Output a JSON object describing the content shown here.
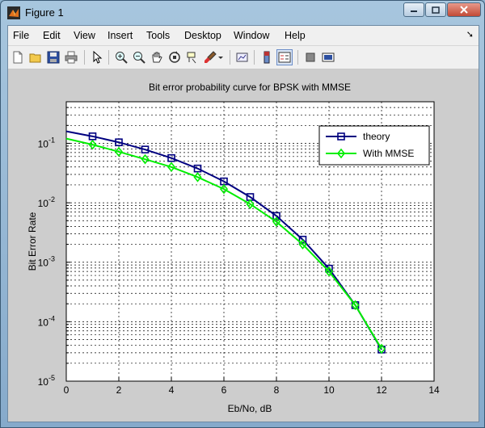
{
  "window": {
    "title": "Figure 1",
    "min_icon": "minimize-icon",
    "max_icon": "maximize-icon",
    "close_icon": "close-icon"
  },
  "menu": {
    "items": [
      "File",
      "Edit",
      "View",
      "Insert",
      "Tools",
      "Desktop",
      "Window",
      "Help"
    ]
  },
  "toolbar": {
    "icons": [
      "new-figure-icon",
      "open-file-icon",
      "save-figure-icon",
      "print-figure-icon",
      "edit-plot-icon",
      "zoom-in-icon",
      "zoom-out-icon",
      "pan-icon",
      "rotate-3d-icon",
      "data-cursor-icon",
      "brush-icon",
      "link-plot-icon",
      "colorbar-icon",
      "legend-icon",
      "hide-plot-tools-icon",
      "show-plot-tools-icon"
    ]
  },
  "chart_data": {
    "type": "line",
    "title": "Bit error probability curve for BPSK with MMSE",
    "xlabel": "Eb/No, dB",
    "ylabel": "Bit Error Rate",
    "xlim": [
      0,
      14
    ],
    "ylim": [
      1e-05,
      0.5
    ],
    "yscale": "log",
    "grid": true,
    "legend_position": "top-right",
    "x_ticks": [
      "0",
      "2",
      "4",
      "6",
      "8",
      "10",
      "12",
      "14"
    ],
    "y_ticks": [
      {
        "base": "10",
        "exp": "-1",
        "value": 0.1
      },
      {
        "base": "10",
        "exp": "-2",
        "value": 0.01
      },
      {
        "base": "10",
        "exp": "-3",
        "value": 0.001
      },
      {
        "base": "10",
        "exp": "-4",
        "value": 0.0001
      },
      {
        "base": "10",
        "exp": "-5",
        "value": 1e-05
      }
    ],
    "x": [
      0,
      1,
      2,
      3,
      4,
      5,
      6,
      7,
      8,
      9,
      10,
      11,
      12
    ],
    "series": [
      {
        "name": "theory",
        "color": "#000080",
        "marker": "square",
        "values": [
          0.159,
          0.131,
          0.104,
          0.0786,
          0.0565,
          0.0377,
          0.0229,
          0.0125,
          0.006,
          0.0024,
          0.00078,
          0.00019,
          3.4e-05
        ]
      },
      {
        "name": "With MMSE",
        "color": "#00ee00",
        "marker": "diamond",
        "values": [
          0.12,
          0.095,
          0.072,
          0.054,
          0.04,
          0.027,
          0.017,
          0.0095,
          0.0048,
          0.002,
          0.0007,
          0.00019,
          3.5e-05
        ]
      }
    ]
  }
}
